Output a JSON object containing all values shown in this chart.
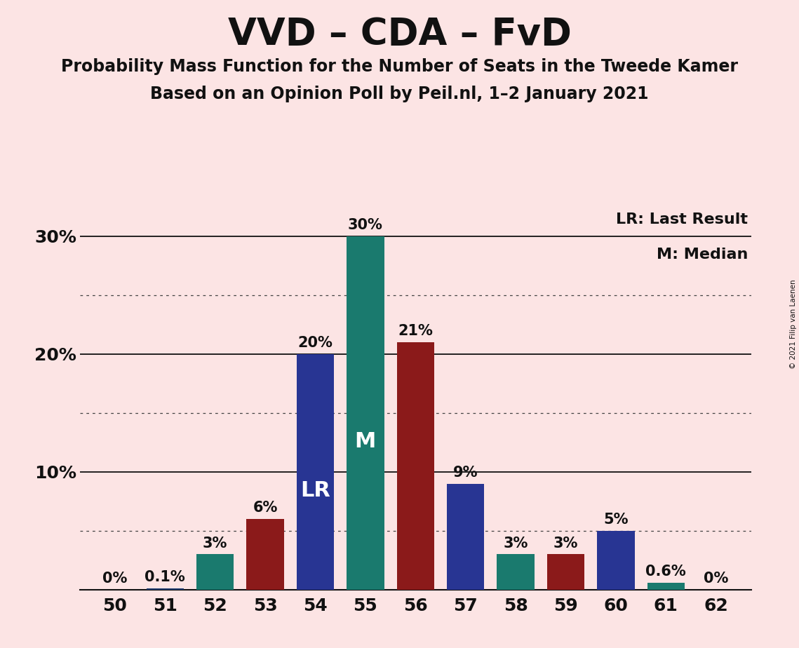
{
  "title": "VVD – CDA – FvD",
  "subtitle1": "Probability Mass Function for the Number of Seats in the Tweede Kamer",
  "subtitle2": "Based on an Opinion Poll by Peil.nl, 1–2 January 2021",
  "copyright": "© 2021 Filip van Laenen",
  "legend_lr": "LR: Last Result",
  "legend_m": "M: Median",
  "background_color": "#fce4e4",
  "seats": [
    50,
    51,
    52,
    53,
    54,
    55,
    56,
    57,
    58,
    59,
    60,
    61,
    62
  ],
  "values": [
    0.0,
    0.1,
    3.0,
    6.0,
    20.0,
    30.0,
    21.0,
    9.0,
    3.0,
    3.0,
    5.0,
    0.6,
    0.0
  ],
  "bar_colors": [
    "#1e3a6e",
    "#1e3a6e",
    "#1a7a6e",
    "#8b1a1a",
    "#283593",
    "#1a7a6e",
    "#8b1a1a",
    "#283593",
    "#1a7a6e",
    "#8b1a1a",
    "#283593",
    "#1a7a6e",
    "#8b1a1a"
  ],
  "lr_seat": 54,
  "median_seat": 55,
  "ylim": [
    0,
    33
  ],
  "solid_lines": [
    10,
    20,
    30
  ],
  "dotted_lines": [
    5,
    15,
    25
  ],
  "bar_label_fontsize": 15,
  "title_fontsize": 38,
  "subtitle_fontsize": 17,
  "axis_fontsize": 18,
  "legend_fontsize": 16,
  "lr_label_fontsize": 22,
  "m_label_fontsize": 22
}
